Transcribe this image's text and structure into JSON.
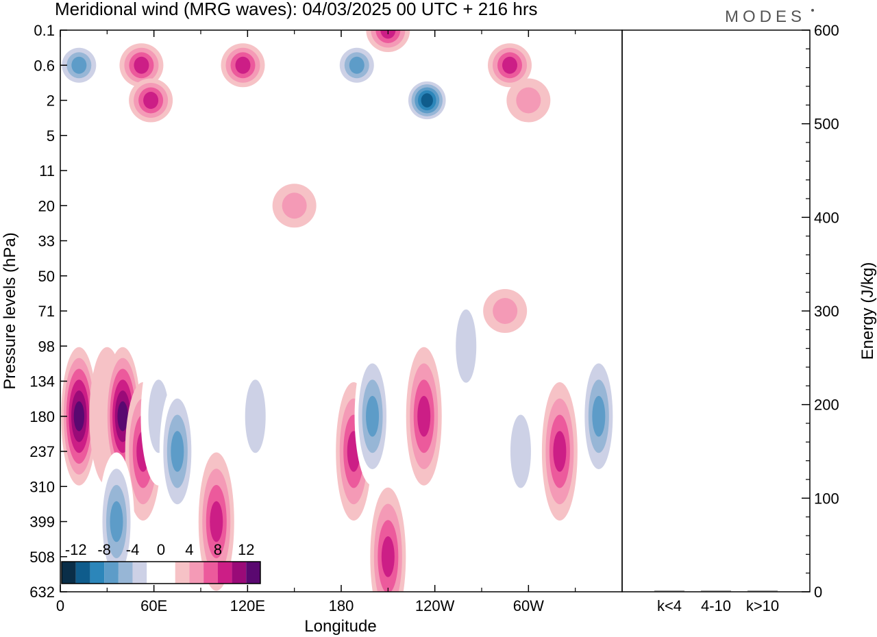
{
  "title": "Meridional wind (MRG waves):  04/03/2025  00 UTC  + 216 hrs",
  "logo": "MODES",
  "chart_data": [
    {
      "type": "heatmap",
      "title": "Meridional wind (MRG waves):  04/03/2025  00 UTC  + 216 hrs",
      "xlabel": "Longitude",
      "ylabel": "Pressure levels (hPa)",
      "x_ticks": [
        {
          "label": "0",
          "lon": 0
        },
        {
          "label": "60E",
          "lon": 60
        },
        {
          "label": "120E",
          "lon": 120
        },
        {
          "label": "180",
          "lon": 180
        },
        {
          "label": "120W",
          "lon": 240
        },
        {
          "label": "60W",
          "lon": 300
        }
      ],
      "x_range": [
        0,
        360
      ],
      "y_levels": [
        "0.1",
        "0.6",
        "2",
        "5",
        "11",
        "20",
        "33",
        "50",
        "71",
        "98",
        "134",
        "180",
        "237",
        "310",
        "399",
        "508",
        "632"
      ],
      "colorbar": {
        "labels": [
          "-12",
          "-8",
          "-4",
          "0",
          "4",
          "8",
          "12"
        ],
        "label_values": [
          -12,
          -8,
          -4,
          0,
          4,
          8,
          12
        ],
        "colors": [
          "#0a2e48",
          "#0f5c8c",
          "#2c86ba",
          "#5d9cc8",
          "#97b6d6",
          "#cdd1e6",
          "#ffffff",
          "#ffffff",
          "#f6c2c6",
          "#f49ab6",
          "#ec5a9c",
          "#cc1e86",
          "#9a0a78",
          "#5a0870"
        ]
      },
      "features": [
        {
          "lon": 12,
          "level": 180,
          "v": 12
        },
        {
          "lon": 30,
          "level": 180,
          "v": 0
        },
        {
          "lon": 40,
          "level": 180,
          "v": 12
        },
        {
          "lon": 53,
          "level": 237,
          "v": 8
        },
        {
          "lon": 63,
          "level": 180,
          "v": -4
        },
        {
          "lon": 75,
          "level": 237,
          "v": -8
        },
        {
          "lon": 100,
          "level": 399,
          "v": 8
        },
        {
          "lon": 125,
          "level": 180,
          "v": -4
        },
        {
          "lon": 36,
          "level": 399,
          "v": -8
        },
        {
          "lon": 188,
          "level": 237,
          "v": 8
        },
        {
          "lon": 200,
          "level": 180,
          "v": -8
        },
        {
          "lon": 210,
          "level": 508,
          "v": 8
        },
        {
          "lon": 233,
          "level": 180,
          "v": 8
        },
        {
          "lon": 295,
          "level": 237,
          "v": -4
        },
        {
          "lon": 320,
          "level": 237,
          "v": 8
        },
        {
          "lon": 345,
          "level": 180,
          "v": -8
        },
        {
          "lon": 12,
          "level": 0.6,
          "v": -8
        },
        {
          "lon": 52,
          "level": 0.6,
          "v": 8
        },
        {
          "lon": 58,
          "level": 2,
          "v": 8
        },
        {
          "lon": 117,
          "level": 0.6,
          "v": 8
        },
        {
          "lon": 190,
          "level": 0.6,
          "v": -8
        },
        {
          "lon": 235,
          "level": 2,
          "v": -12
        },
        {
          "lon": 210,
          "level": 0.1,
          "v": 8
        },
        {
          "lon": 288,
          "level": 0.6,
          "v": 8
        },
        {
          "lon": 300,
          "level": 2,
          "v": 4
        },
        {
          "lon": 150,
          "level": 20,
          "v": 4
        },
        {
          "lon": 260,
          "level": 98,
          "v": -4
        },
        {
          "lon": 285,
          "level": 71,
          "v": 4
        }
      ]
    },
    {
      "type": "bar",
      "categories": [
        "k<4",
        "4-10",
        "k>10"
      ],
      "values": [
        0,
        1,
        0
      ],
      "ylabel": "Energy (J/kg)",
      "ylim": [
        0,
        600
      ],
      "y_ticks": [
        "0",
        "100",
        "200",
        "300",
        "400",
        "500",
        "600"
      ]
    }
  ]
}
